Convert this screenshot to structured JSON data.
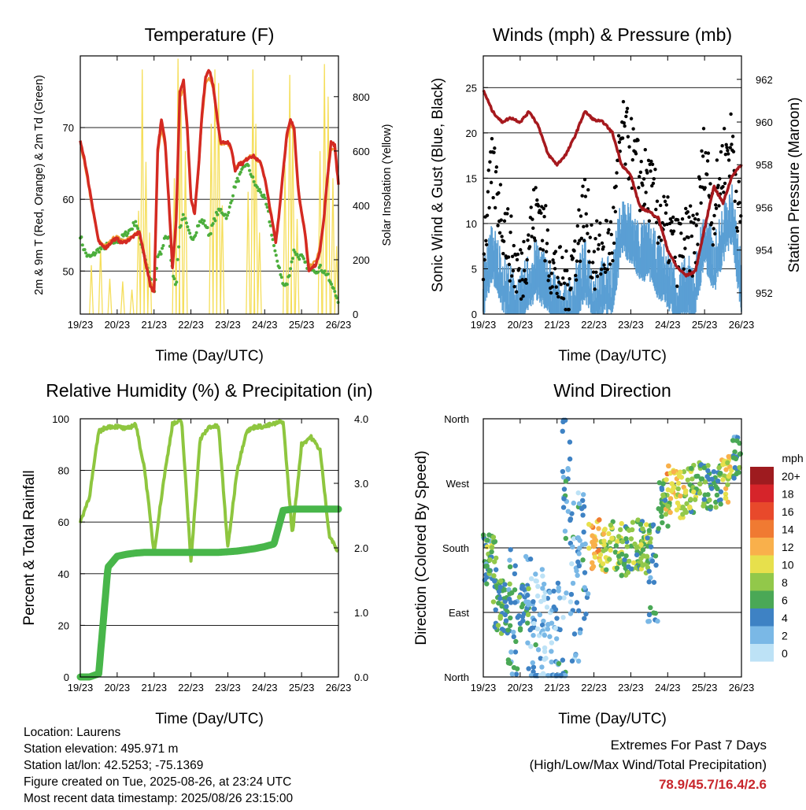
{
  "chart_data": [
    {
      "type": "line",
      "title": "Temperature (F)",
      "xlabel": "Time (Day/UTC)",
      "ylabel": "2m & 9m T (Red, Orange) & 2m Td (Green)",
      "y2label": "Solar Insolation (Yellow)",
      "x_ticks": [
        "19/23",
        "20/23",
        "21/23",
        "22/23",
        "23/23",
        "24/23",
        "25/23",
        "26/23"
      ],
      "x": [
        0,
        0.1,
        0.2,
        0.3,
        0.4,
        0.5,
        0.6,
        0.7,
        0.8,
        0.9,
        1.0,
        1.1,
        1.2,
        1.3,
        1.4,
        1.5,
        1.6,
        1.7,
        1.8,
        1.9,
        2.0,
        2.1,
        2.2,
        2.3,
        2.4,
        2.5,
        2.6,
        2.7,
        2.8,
        2.9,
        3.0,
        3.1,
        3.2,
        3.3,
        3.4,
        3.5,
        3.6,
        3.7,
        3.8,
        3.9,
        4.0,
        4.1,
        4.2,
        4.3,
        4.4,
        4.5,
        4.6,
        4.7,
        4.8,
        4.9,
        5.0,
        5.1,
        5.2,
        5.3,
        5.4,
        5.5,
        5.6,
        5.7,
        5.8,
        5.9,
        6.0,
        6.1,
        6.2,
        6.3,
        6.4,
        6.5,
        6.6,
        6.7,
        6.8,
        6.9,
        7.0
      ],
      "y_ticks": [
        50,
        60,
        70
      ],
      "ylim": [
        44,
        80
      ],
      "y2_ticks": [
        0,
        200,
        400,
        600,
        800
      ],
      "y2lim": [
        0,
        950
      ],
      "series": [
        {
          "name": "2m T",
          "color": "#d42a22",
          "axis": "left",
          "values": [
            68,
            66,
            63,
            60,
            57,
            54,
            53.5,
            53.3,
            53.8,
            54.4,
            54.5,
            54,
            54,
            54.3,
            54.7,
            55,
            55.5,
            53,
            50.5,
            48,
            47,
            67,
            71,
            68,
            60,
            50.5,
            57,
            75,
            76.5,
            70,
            60,
            58,
            64,
            72,
            77,
            78,
            76,
            72,
            68,
            68,
            68,
            67,
            64,
            65,
            65,
            65.5,
            66,
            66,
            65.5,
            65,
            63,
            60,
            57,
            54,
            58.5,
            64,
            69,
            71,
            70,
            62,
            58,
            55,
            50,
            50.5,
            51,
            53,
            57,
            63,
            68,
            67.5,
            62
          ]
        },
        {
          "name": "9m T",
          "color": "#f39c34",
          "axis": "left",
          "values": [
            67.5,
            65.5,
            62.5,
            59.5,
            56.8,
            54.2,
            53.8,
            53.6,
            54,
            54.6,
            54.8,
            54.3,
            54.2,
            54.5,
            54.9,
            55.2,
            55.6,
            53.3,
            50.9,
            48.5,
            47.5,
            66,
            70,
            67.5,
            60.2,
            51,
            57,
            74,
            75.5,
            69.5,
            60.3,
            58.3,
            63.5,
            71,
            76,
            77,
            75.5,
            71.5,
            67.8,
            67.8,
            67.8,
            66.8,
            64.2,
            65.1,
            65.1,
            65.6,
            66,
            66,
            65.5,
            65,
            63.1,
            60.3,
            57.4,
            54.5,
            58.5,
            63.6,
            68.5,
            70.5,
            69.6,
            62.2,
            58.3,
            55.4,
            50.6,
            51,
            51.5,
            53.5,
            57.2,
            62.5,
            67,
            67,
            62
          ]
        },
        {
          "name": "2m Td",
          "color": "#4cae3c",
          "axis": "left",
          "values": [
            55,
            53,
            52,
            52,
            52.5,
            53,
            53.2,
            53.5,
            53.7,
            54,
            54.2,
            54.5,
            55,
            55.5,
            56,
            57,
            55,
            53,
            51,
            49,
            46.5,
            52,
            52.5,
            55,
            54.5,
            50,
            48,
            56,
            58,
            56,
            54.5,
            55,
            56.5,
            57,
            56.5,
            55,
            56.5,
            58,
            58.5,
            58,
            57.5,
            60,
            62,
            63,
            64,
            65,
            64,
            62.5,
            61.5,
            61,
            60,
            58,
            55,
            52,
            50.5,
            48,
            48,
            50.5,
            53,
            52,
            52,
            51,
            50.5,
            50.5,
            50,
            50.5,
            50,
            49.5,
            48,
            47.5,
            45
          ]
        },
        {
          "name": "Solar Insolation",
          "color": "#f5de5a",
          "axis": "right",
          "values": [
            0,
            0,
            0,
            0,
            0,
            0,
            0,
            0,
            0,
            0,
            0,
            0,
            0,
            0,
            0,
            0,
            0,
            0,
            0,
            0,
            0,
            0,
            0,
            0,
            0,
            0,
            0,
            0,
            0,
            0,
            0,
            0,
            0,
            0,
            0,
            0,
            0,
            0,
            0,
            0,
            0,
            0,
            0,
            0,
            0,
            0,
            0,
            0,
            0,
            0,
            0,
            0,
            0,
            0,
            0,
            0,
            0,
            0,
            0,
            0,
            0,
            0,
            0,
            0,
            0,
            0,
            0,
            0,
            0,
            0,
            0
          ]
        }
      ],
      "insolation_peaks": [
        {
          "x": 0.3,
          "v": 180
        },
        {
          "x": 0.55,
          "v": 250
        },
        {
          "x": 0.8,
          "v": 130
        },
        {
          "x": 1.15,
          "v": 120
        },
        {
          "x": 1.4,
          "v": 90
        },
        {
          "x": 1.58,
          "v": 380
        },
        {
          "x": 1.68,
          "v": 900
        },
        {
          "x": 1.78,
          "v": 560
        },
        {
          "x": 1.88,
          "v": 300
        },
        {
          "x": 2.55,
          "v": 500
        },
        {
          "x": 2.65,
          "v": 940
        },
        {
          "x": 2.73,
          "v": 800
        },
        {
          "x": 2.85,
          "v": 600
        },
        {
          "x": 3.55,
          "v": 700
        },
        {
          "x": 3.65,
          "v": 900
        },
        {
          "x": 3.75,
          "v": 850
        },
        {
          "x": 3.85,
          "v": 400
        },
        {
          "x": 4.55,
          "v": 450
        },
        {
          "x": 4.68,
          "v": 900
        },
        {
          "x": 4.76,
          "v": 700
        },
        {
          "x": 4.86,
          "v": 300
        },
        {
          "x": 5.55,
          "v": 550
        },
        {
          "x": 5.68,
          "v": 880
        },
        {
          "x": 5.76,
          "v": 700
        },
        {
          "x": 5.88,
          "v": 350
        },
        {
          "x": 6.5,
          "v": 600
        },
        {
          "x": 6.62,
          "v": 920
        },
        {
          "x": 6.72,
          "v": 800
        },
        {
          "x": 6.85,
          "v": 500
        },
        {
          "x": 6.95,
          "v": 250
        }
      ]
    },
    {
      "type": "line",
      "title": "Winds (mph) & Pressure (mb)",
      "xlabel": "Time (Day/UTC)",
      "ylabel": "Sonic Wind & Gust (Blue, Black)",
      "y2label": "Station Pressure (Maroon)",
      "x_ticks": [
        "19/23",
        "20/23",
        "21/23",
        "22/23",
        "23/23",
        "24/23",
        "25/23",
        "26/23"
      ],
      "x": [
        0,
        0.25,
        0.5,
        0.75,
        1.0,
        1.25,
        1.5,
        1.75,
        2.0,
        2.25,
        2.5,
        2.75,
        3.0,
        3.25,
        3.5,
        3.75,
        4.0,
        4.25,
        4.5,
        4.75,
        5.0,
        5.25,
        5.5,
        5.75,
        6.0,
        6.25,
        6.5,
        6.75,
        7.0
      ],
      "y_ticks": [
        0,
        5,
        10,
        15,
        20,
        25
      ],
      "ylim": [
        0,
        28.5
      ],
      "y2_ticks": [
        952,
        954,
        956,
        958,
        960,
        962
      ],
      "y2lim": [
        951,
        963.1
      ],
      "series": [
        {
          "name": "Sonic Wind",
          "color": "#5a9fd4",
          "axis": "left",
          "values": [
            4,
            8,
            5,
            3,
            2,
            5,
            6,
            4,
            2,
            1,
            3,
            6,
            3,
            4,
            4,
            11,
            10,
            8,
            8,
            6,
            5,
            3,
            4,
            4,
            10,
            6,
            10,
            12,
            4
          ]
        },
        {
          "name": "Gust",
          "color": "#000000",
          "axis": "left",
          "values": [
            7,
            16,
            11,
            7,
            4,
            9,
            12,
            7,
            4,
            3,
            7,
            12,
            6,
            7,
            8,
            20,
            18,
            15,
            14,
            11,
            9,
            7,
            8,
            8,
            18,
            11,
            17,
            19,
            8
          ]
        },
        {
          "name": "Station Pressure",
          "color": "#a6191e",
          "axis": "right",
          "values": [
            961.5,
            960.5,
            960,
            960.2,
            960,
            960.5,
            959.8,
            958.5,
            958,
            958.5,
            959.4,
            960.5,
            960.1,
            960,
            959.5,
            958,
            957.5,
            956,
            955.8,
            955.5,
            954,
            953.2,
            952.8,
            953,
            955,
            957,
            956.2,
            957.5,
            958
          ]
        }
      ]
    },
    {
      "type": "line",
      "title": "Relative Humidity (%) & Precipitation (in)",
      "xlabel": "Time (Day/UTC)",
      "ylabel": "Percent & Total Rainfall",
      "x_ticks": [
        "19/23",
        "20/23",
        "21/23",
        "22/23",
        "23/23",
        "24/23",
        "25/23",
        "26/23"
      ],
      "x": [
        0,
        0.25,
        0.5,
        0.75,
        1.0,
        1.25,
        1.5,
        1.75,
        2.0,
        2.25,
        2.5,
        2.75,
        3.0,
        3.25,
        3.5,
        3.75,
        4.0,
        4.25,
        4.5,
        4.75,
        5.0,
        5.25,
        5.5,
        5.75,
        6.0,
        6.25,
        6.5,
        6.75,
        7.0
      ],
      "y_ticks": [
        0,
        20,
        40,
        60,
        80,
        100
      ],
      "ylim": [
        0,
        100
      ],
      "y2_ticks": [
        "0.0",
        "1.0",
        "2.0",
        "3.0",
        "4.0"
      ],
      "y2lim": [
        0,
        4
      ],
      "series": [
        {
          "name": "Relative Humidity",
          "color": "#8ec63f",
          "axis": "left",
          "values": [
            60,
            70,
            95,
            97,
            97,
            96,
            98,
            80,
            48,
            75,
            98,
            99,
            45,
            92,
            97,
            97,
            50,
            80,
            95,
            97,
            97,
            98,
            99,
            55,
            90,
            93,
            88,
            55,
            48
          ]
        },
        {
          "name": "Total Rainfall",
          "color": "#48b64a",
          "axis": "right",
          "values": [
            0,
            0,
            0.05,
            1.7,
            1.87,
            1.9,
            1.92,
            1.93,
            1.93,
            1.93,
            1.93,
            1.93,
            1.93,
            1.93,
            1.93,
            1.93,
            1.94,
            1.95,
            1.97,
            1.99,
            2.02,
            2.06,
            2.58,
            2.6,
            2.6,
            2.6,
            2.6,
            2.6,
            2.6
          ]
        }
      ]
    },
    {
      "type": "scatter",
      "title": "Wind Direction",
      "xlabel": "Time (Day/UTC)",
      "ylabel": "Direction (Colored By Speed)",
      "x_ticks": [
        "19/23",
        "20/23",
        "21/23",
        "22/23",
        "23/23",
        "24/23",
        "25/23",
        "26/23"
      ],
      "y_ticks": [
        "North",
        "East",
        "South",
        "West",
        "North"
      ],
      "ylim": [
        0,
        360
      ],
      "legend_title": "mph",
      "legend_labels": [
        "20+",
        "18",
        "16",
        "14",
        "12",
        "10",
        "8",
        "6",
        "4",
        "2",
        "0"
      ],
      "legend_colors": [
        "#9e1b1f",
        "#d6242a",
        "#e8492b",
        "#f07a32",
        "#f9b04b",
        "#e7e04c",
        "#92c84a",
        "#4aa856",
        "#3e82c4",
        "#7ab8e6",
        "#bde2f6"
      ],
      "clusters": [
        {
          "x": 0.1,
          "dir": 170,
          "speed": 5
        },
        {
          "x": 0.2,
          "dir": 160,
          "speed": 7
        },
        {
          "x": 0.4,
          "dir": 100,
          "speed": 6
        },
        {
          "x": 0.6,
          "dir": 95,
          "speed": 5
        },
        {
          "x": 0.8,
          "dir": 90,
          "speed": 4
        },
        {
          "x": 1.1,
          "dir": 95,
          "speed": 5
        },
        {
          "x": 1.3,
          "dir": 85,
          "speed": 3
        },
        {
          "x": 1.5,
          "dir": 60,
          "speed": 2
        },
        {
          "x": 1.7,
          "dir": 40,
          "speed": 1
        },
        {
          "x": 1.9,
          "dir": 30,
          "speed": 2
        },
        {
          "x": 2.1,
          "dir": 45,
          "speed": 3
        },
        {
          "x": 2.3,
          "dir": 280,
          "speed": 4
        },
        {
          "x": 2.5,
          "dir": 110,
          "speed": 2
        },
        {
          "x": 2.7,
          "dir": 170,
          "speed": 3
        },
        {
          "x": 3.0,
          "dir": 185,
          "speed": 12
        },
        {
          "x": 3.3,
          "dir": 180,
          "speed": 9
        },
        {
          "x": 3.6,
          "dir": 182,
          "speed": 8
        },
        {
          "x": 3.9,
          "dir": 175,
          "speed": 6
        },
        {
          "x": 4.2,
          "dir": 185,
          "speed": 7
        },
        {
          "x": 4.4,
          "dir": 180,
          "speed": 8
        },
        {
          "x": 4.6,
          "dir": 150,
          "speed": 4
        },
        {
          "x": 4.9,
          "dir": 240,
          "speed": 6
        },
        {
          "x": 5.1,
          "dir": 260,
          "speed": 11
        },
        {
          "x": 5.4,
          "dir": 255,
          "speed": 9
        },
        {
          "x": 5.7,
          "dir": 262,
          "speed": 7
        },
        {
          "x": 6.0,
          "dir": 265,
          "speed": 6
        },
        {
          "x": 6.3,
          "dir": 260,
          "speed": 5
        },
        {
          "x": 6.6,
          "dir": 275,
          "speed": 10
        },
        {
          "x": 6.9,
          "dir": 300,
          "speed": 5
        }
      ]
    }
  ],
  "footer": {
    "location": "Location: Laurens",
    "elevation": "Station elevation: 495.971 m",
    "latlon": "Station lat/lon: 42.5253; -75.1369",
    "created": "Figure created on Tue, 2025-08-26, at 23:24 UTC",
    "recent": "Most recent data timestamp: 2025/08/26 23:15:00",
    "extremes_title": "Extremes For Past 7 Days",
    "extremes_sub": "(High/Low/Max Wind/Total Precipitation)",
    "extremes_value": "78.9/45.7/16.4/2.6"
  }
}
